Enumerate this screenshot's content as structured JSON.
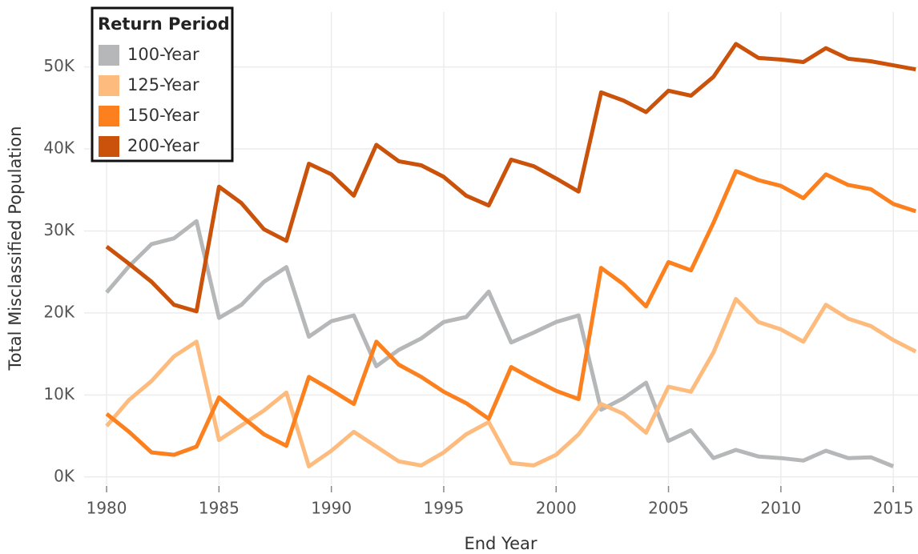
{
  "chart_data": {
    "type": "line",
    "xlabel": "End Year",
    "ylabel": "Total Misclassified Population",
    "legend_title": "Return Period",
    "legend": "top-left",
    "grid": true,
    "x": [
      1980,
      1981,
      1982,
      1983,
      1984,
      1985,
      1986,
      1987,
      1988,
      1989,
      1990,
      1991,
      1992,
      1993,
      1994,
      1995,
      1996,
      1997,
      1998,
      1999,
      2000,
      2001,
      2002,
      2003,
      2004,
      2005,
      2006,
      2007,
      2008,
      2009,
      2010,
      2011,
      2012,
      2013,
      2014,
      2015,
      2016
    ],
    "xlim": [
      1979,
      2016.1
    ],
    "xticks": [
      1980,
      1985,
      1990,
      1995,
      2000,
      2005,
      2010,
      2015
    ],
    "ylim": [
      -900,
      56700
    ],
    "yticks": [
      {
        "value": 0,
        "label": "0K"
      },
      {
        "value": 10000,
        "label": "10K"
      },
      {
        "value": 20000,
        "label": "20K"
      },
      {
        "value": 30000,
        "label": "30K"
      },
      {
        "value": 40000,
        "label": "40K"
      },
      {
        "value": 50000,
        "label": "50K"
      }
    ],
    "series": [
      {
        "name": "100-Year",
        "color": "#b5b7b8",
        "values": [
          22500,
          25700,
          28400,
          29100,
          31200,
          19400,
          21000,
          23800,
          25600,
          17100,
          19000,
          19700,
          13500,
          15500,
          16900,
          18900,
          19500,
          22600,
          16400,
          17600,
          18900,
          19700,
          8200,
          9600,
          11500,
          4400,
          5700,
          2300,
          3300,
          2500,
          2300,
          2000,
          3200,
          2300,
          2400,
          1300,
          null
        ]
      },
      {
        "name": "125-Year",
        "color": "#fdbb7d",
        "values": [
          6200,
          9400,
          11700,
          14700,
          16500,
          4500,
          6300,
          8100,
          10300,
          1300,
          3200,
          5500,
          3700,
          1900,
          1400,
          3000,
          5200,
          6700,
          1700,
          1400,
          2700,
          5200,
          8900,
          7700,
          5400,
          11000,
          10400,
          15200,
          21700,
          18900,
          18000,
          16500,
          21000,
          19300,
          18400,
          16700,
          15300
        ]
      },
      {
        "name": "150-Year",
        "color": "#fc801e",
        "values": [
          7700,
          5500,
          3000,
          2700,
          3700,
          9700,
          7400,
          5200,
          3800,
          12200,
          10600,
          8900,
          16500,
          13700,
          12200,
          10400,
          9000,
          7100,
          13400,
          11900,
          10500,
          9500,
          25500,
          23500,
          20800,
          26200,
          25200,
          31000,
          37300,
          36200,
          35500,
          34000,
          36900,
          35600,
          35100,
          33300,
          32400
        ]
      },
      {
        "name": "200-Year",
        "color": "#cb520a",
        "values": [
          28100,
          26000,
          23800,
          21000,
          20200,
          35400,
          33400,
          30200,
          28800,
          38200,
          36900,
          34300,
          40500,
          38500,
          38000,
          36600,
          34300,
          33100,
          38700,
          37900,
          36400,
          34800,
          46900,
          45900,
          44500,
          47100,
          46500,
          48800,
          52800,
          51100,
          50900,
          50600,
          52300,
          51000,
          50700,
          50200,
          49700
        ]
      }
    ]
  }
}
